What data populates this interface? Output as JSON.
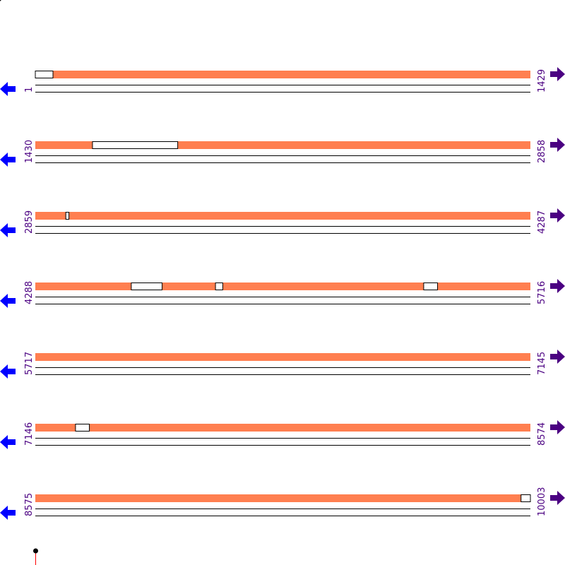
{
  "colors": {
    "covered": "#ff7f50",
    "left_arrow": "#0000ff",
    "right_arrow": "#4b0082",
    "label": "#4b0082",
    "marker_line": "#ff0000",
    "marker_dot": "#000000"
  },
  "icons": {
    "left": "arrow-left-icon",
    "right": "arrow-right-icon"
  },
  "rows": [
    {
      "start": "1",
      "end": "1429",
      "from": 1,
      "to": 1429,
      "gaps": [
        [
          1,
          51
        ]
      ]
    },
    {
      "start": "1430",
      "end": "2858",
      "from": 1430,
      "to": 2858,
      "gaps": [
        [
          1595,
          1840
        ]
      ]
    },
    {
      "start": "2859",
      "end": "4287",
      "from": 2859,
      "to": 4287,
      "gaps": [
        [
          2947,
          2955
        ]
      ]
    },
    {
      "start": "4288",
      "end": "5716",
      "from": 4288,
      "to": 5716,
      "gaps": [
        [
          4565,
          4653
        ],
        [
          4808,
          4828
        ],
        [
          5409,
          5448
        ]
      ]
    },
    {
      "start": "5717",
      "end": "7145",
      "from": 5717,
      "to": 7145,
      "gaps": []
    },
    {
      "start": "7146",
      "end": "8574",
      "from": 7146,
      "to": 8574,
      "gaps": [
        [
          7262,
          7301
        ]
      ]
    },
    {
      "start": "8575",
      "end": "10003",
      "from": 8575,
      "to": 10003,
      "gaps": [
        [
          9977,
          10003
        ]
      ]
    }
  ]
}
